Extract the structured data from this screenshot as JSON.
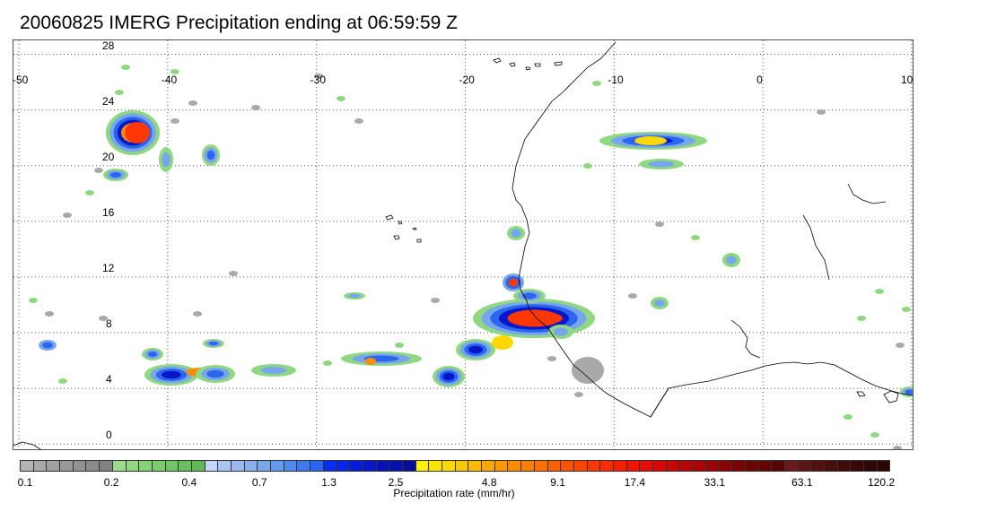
{
  "title": "20060825 IMERG Precipitation ending at 06:59:59 Z",
  "map": {
    "lon_range": [
      -50,
      10
    ],
    "lat_range": [
      -0.5,
      29
    ],
    "lon_ticks": [
      "-50",
      "-40",
      "-30",
      "-20",
      "-10",
      "0",
      "10"
    ],
    "lat_ticks": [
      "0",
      "4",
      "8",
      "12",
      "16",
      "20",
      "24",
      "28"
    ],
    "grid": "dotted",
    "features": {
      "coastline": "West Africa",
      "storms": [
        {
          "name": "cluster-1",
          "lon": -40.8,
          "lat": 23.5,
          "peak": "17.4"
        },
        {
          "name": "cluster-2",
          "lon": -14.9,
          "lat": 9.9,
          "peak": "17.4"
        },
        {
          "name": "cluster-3",
          "lon": -8.2,
          "lat": 23.0,
          "peak": "4.8"
        },
        {
          "name": "cluster-4",
          "lon": -38.2,
          "lat": 5.7,
          "peak": "4.8"
        },
        {
          "name": "cluster-5",
          "lon": -17.5,
          "lat": 12.3,
          "peak": "9.1"
        }
      ]
    }
  },
  "colorbar": {
    "label": "Precipitation rate (mm/hr)",
    "colors": [
      "#b4b4b4",
      "#a9a9a9",
      "#a0a0a0",
      "#999999",
      "#929292",
      "#8a8a8a",
      "#828282",
      "#9bdc8c",
      "#8fd781",
      "#85d178",
      "#7ccb6f",
      "#72c566",
      "#68bf5d",
      "#5fb955",
      "#c4d4fa",
      "#aac4f4",
      "#9ab8f0",
      "#8ab0ec",
      "#78a6ec",
      "#629aee",
      "#5088ee",
      "#3c78ee",
      "#2a66ee",
      "#0a2cf0",
      "#0824e6",
      "#061cd8",
      "#0616c8",
      "#0612b8",
      "#0610aa",
      "#060e9a",
      "#fef200",
      "#fee600",
      "#fed800",
      "#fec800",
      "#feb800",
      "#fea800",
      "#fe9a00",
      "#fe8c00",
      "#fe7e00",
      "#fe7000",
      "#fe6200",
      "#fe5400",
      "#fe4600",
      "#fe3800",
      "#fe2a00",
      "#fa1e00",
      "#f01400",
      "#e60c00",
      "#d80800",
      "#c80600",
      "#b80404",
      "#aa0404",
      "#9a0404",
      "#8a0404",
      "#7a0404",
      "#6e0404",
      "#620404",
      "#560606",
      "#6a1a1a",
      "#5e1414",
      "#541010",
      "#4a0c0c",
      "#400a0a",
      "#380808",
      "#300606",
      "#2c0606"
    ],
    "tick_labels": [
      "0.1",
      "0.2",
      "0.4",
      "0.7",
      "1.3",
      "2.5",
      "4.8",
      "9.1",
      "17.4",
      "33.1",
      "63.1",
      "120.2"
    ],
    "tick_fractions": [
      0,
      0.1053,
      0.1947,
      0.2755,
      0.3553,
      0.4319,
      0.5394,
      0.6181,
      0.7066,
      0.7983,
      0.8988,
      1.0
    ]
  }
}
